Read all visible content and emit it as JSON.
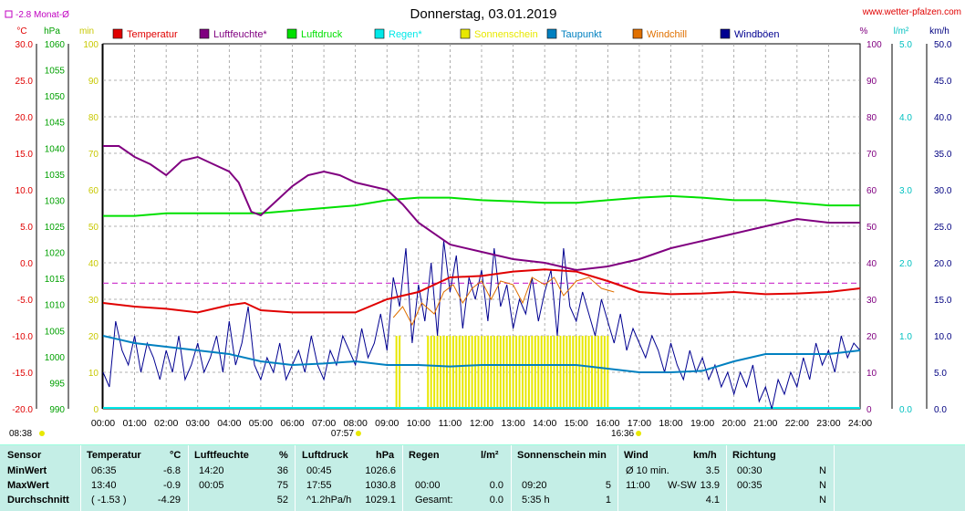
{
  "title": "Donnerstag, 03.01.2019",
  "site": "www.wetter-pfalzen.com",
  "monthly_avg": "-2.8 Monat-Ø",
  "left_units": [
    "°C",
    "hPa",
    "min"
  ],
  "right_units": [
    "%",
    "l/m²",
    "km/h"
  ],
  "legend": [
    {
      "label": "Temperatur",
      "color": "#e00000"
    },
    {
      "label": "Luftfeuchte*",
      "color": "#800080"
    },
    {
      "label": "Luftdruck",
      "color": "#00e000"
    },
    {
      "label": "Regen*",
      "color": "#00e8e8"
    },
    {
      "label": "Sonnenschein",
      "color": "#e8e800"
    },
    {
      "label": "Taupunkt",
      "color": "#0080c0"
    },
    {
      "label": "Windchill",
      "color": "#e07000"
    },
    {
      "label": "Windböen",
      "color": "#000090"
    }
  ],
  "axes": {
    "temp_ticks": [
      "30.0",
      "25.0",
      "20.0",
      "15.0",
      "10.0",
      "5.0",
      "0.0",
      "-5.0",
      "-10.0",
      "-15.0",
      "-20.0"
    ],
    "press_ticks": [
      "1060",
      "1055",
      "1050",
      "1045",
      "1040",
      "1035",
      "1030",
      "1025",
      "1020",
      "1015",
      "1010",
      "1005",
      "1000",
      "995",
      "990"
    ],
    "min_ticks": [
      "100",
      "90",
      "80",
      "70",
      "60",
      "50",
      "40",
      "30",
      "20",
      "10",
      "0"
    ],
    "hum_ticks": [
      "100",
      "90",
      "80",
      "70",
      "60",
      "50",
      "40",
      "30",
      "20",
      "10",
      "0"
    ],
    "rain_ticks": [
      "5.0",
      "4.0",
      "3.0",
      "2.0",
      "1.0",
      "0.0"
    ],
    "wind_ticks": [
      "50.0",
      "45.0",
      "40.0",
      "35.0",
      "30.0",
      "25.0",
      "20.0",
      "15.0",
      "10.0",
      "5.0",
      "0.0"
    ],
    "x_ticks": [
      "00:00",
      "01:00",
      "02:00",
      "03:00",
      "04:00",
      "05:00",
      "06:00",
      "07:00",
      "08:00",
      "09:00",
      "10:00",
      "11:00",
      "12:00",
      "13:00",
      "14:00",
      "15:00",
      "16:00",
      "17:00",
      "18:00",
      "19:00",
      "20:00",
      "21:00",
      "22:00",
      "23:00",
      "24:00"
    ],
    "sunrise": "07:57",
    "sunset": "16:36",
    "moon": "08:38"
  },
  "chart_data": {
    "type": "line",
    "x_unit": "hours",
    "temp_range": [
      -20,
      30
    ],
    "pressure_range": [
      990,
      1060
    ],
    "humidity_range": [
      0,
      100
    ],
    "wind_range": [
      0,
      50
    ],
    "sun_range": [
      0,
      100
    ],
    "monthly_avg_temp": -2.8,
    "series": [
      {
        "name": "Temperatur",
        "axis": "temp",
        "points": [
          [
            0,
            -5.5
          ],
          [
            1,
            -6.0
          ],
          [
            2,
            -6.3
          ],
          [
            3,
            -6.8
          ],
          [
            4,
            -5.8
          ],
          [
            4.5,
            -5.5
          ],
          [
            5,
            -6.5
          ],
          [
            6,
            -6.8
          ],
          [
            7,
            -6.8
          ],
          [
            8,
            -6.8
          ],
          [
            9,
            -5.0
          ],
          [
            10,
            -4.0
          ],
          [
            11,
            -2.0
          ],
          [
            12,
            -1.8
          ],
          [
            13,
            -1.2
          ],
          [
            14,
            -0.9
          ],
          [
            15,
            -1.2
          ],
          [
            16,
            -2.5
          ],
          [
            17,
            -4.0
          ],
          [
            18,
            -4.3
          ],
          [
            19,
            -4.2
          ],
          [
            20,
            -4.0
          ],
          [
            21,
            -4.3
          ],
          [
            22,
            -4.2
          ],
          [
            23,
            -4.0
          ],
          [
            24,
            -3.5
          ]
        ]
      },
      {
        "name": "Taupunkt",
        "axis": "temp",
        "points": [
          [
            0,
            -10.0
          ],
          [
            1,
            -11.0
          ],
          [
            2,
            -11.5
          ],
          [
            3,
            -12.0
          ],
          [
            4,
            -12.5
          ],
          [
            5,
            -13.5
          ],
          [
            6,
            -14.0
          ],
          [
            7,
            -13.8
          ],
          [
            8,
            -13.5
          ],
          [
            9,
            -14.0
          ],
          [
            10,
            -14.0
          ],
          [
            11,
            -14.2
          ],
          [
            12,
            -14.0
          ],
          [
            13,
            -14.0
          ],
          [
            14,
            -14.0
          ],
          [
            15,
            -14.0
          ],
          [
            16,
            -14.5
          ],
          [
            17,
            -15.0
          ],
          [
            18,
            -15.0
          ],
          [
            19,
            -14.8
          ],
          [
            20,
            -13.5
          ],
          [
            21,
            -12.5
          ],
          [
            22,
            -12.5
          ],
          [
            23,
            -12.5
          ],
          [
            24,
            -12.0
          ]
        ]
      },
      {
        "name": "Luftfeuchte*",
        "axis": "humidity",
        "points": [
          [
            0,
            72
          ],
          [
            0.5,
            72
          ],
          [
            1,
            69
          ],
          [
            1.5,
            67
          ],
          [
            2,
            64
          ],
          [
            2.5,
            68
          ],
          [
            3,
            69
          ],
          [
            3.5,
            67
          ],
          [
            4,
            65
          ],
          [
            4.3,
            62
          ],
          [
            4.7,
            54
          ],
          [
            5,
            53
          ],
          [
            5.5,
            57
          ],
          [
            6,
            61
          ],
          [
            6.5,
            64
          ],
          [
            7,
            65
          ],
          [
            7.5,
            64
          ],
          [
            8,
            62
          ],
          [
            9,
            60
          ],
          [
            9.5,
            56
          ],
          [
            10,
            51
          ],
          [
            11,
            45
          ],
          [
            12,
            43
          ],
          [
            13,
            41
          ],
          [
            14,
            40
          ],
          [
            15,
            38
          ],
          [
            16,
            39
          ],
          [
            17,
            41
          ],
          [
            18,
            44
          ],
          [
            19,
            46
          ],
          [
            20,
            48
          ],
          [
            21,
            50
          ],
          [
            22,
            52
          ],
          [
            23,
            51
          ],
          [
            24,
            51
          ]
        ]
      },
      {
        "name": "Luftdruck",
        "axis": "pressure",
        "points": [
          [
            0,
            1027.0
          ],
          [
            1,
            1027.0
          ],
          [
            2,
            1027.5
          ],
          [
            3,
            1027.5
          ],
          [
            4,
            1027.5
          ],
          [
            5,
            1027.5
          ],
          [
            6,
            1028.0
          ],
          [
            7,
            1028.5
          ],
          [
            8,
            1029.0
          ],
          [
            9,
            1030.0
          ],
          [
            10,
            1030.5
          ],
          [
            11,
            1030.5
          ],
          [
            12,
            1030.0
          ],
          [
            13,
            1029.8
          ],
          [
            14,
            1029.5
          ],
          [
            15,
            1029.5
          ],
          [
            16,
            1030.0
          ],
          [
            17,
            1030.5
          ],
          [
            18,
            1030.8
          ],
          [
            19,
            1030.5
          ],
          [
            20,
            1030.0
          ],
          [
            21,
            1030.0
          ],
          [
            22,
            1029.5
          ],
          [
            23,
            1029.0
          ],
          [
            24,
            1029.0
          ]
        ]
      },
      {
        "name": "Windchill",
        "axis": "temp",
        "points": [
          [
            9.2,
            -7.5
          ],
          [
            9.5,
            -6.0
          ],
          [
            9.8,
            -8.5
          ],
          [
            10.1,
            -5.5
          ],
          [
            10.5,
            -7.0
          ],
          [
            10.8,
            -4.0
          ],
          [
            11.1,
            -3.0
          ],
          [
            11.4,
            -5.5
          ],
          [
            11.7,
            -3.5
          ],
          [
            12.0,
            -2.5
          ],
          [
            12.3,
            -5.0
          ],
          [
            12.6,
            -2.5
          ],
          [
            13.0,
            -3.0
          ],
          [
            13.3,
            -5.5
          ],
          [
            13.6,
            -2.0
          ],
          [
            14.0,
            -3.0
          ],
          [
            14.3,
            -2.0
          ],
          [
            14.6,
            -4.5
          ],
          [
            15.0,
            -2.5
          ],
          [
            15.4,
            -2.0
          ],
          [
            15.8,
            -3.5
          ],
          [
            16.2,
            -4.0
          ]
        ]
      },
      {
        "name": "Windböen",
        "axis": "wind",
        "points": [
          [
            0,
            5
          ],
          [
            0.2,
            3
          ],
          [
            0.4,
            12
          ],
          [
            0.6,
            8
          ],
          [
            0.8,
            6
          ],
          [
            1.0,
            10
          ],
          [
            1.2,
            5
          ],
          [
            1.4,
            9
          ],
          [
            1.6,
            7
          ],
          [
            1.8,
            4
          ],
          [
            2.0,
            8
          ],
          [
            2.2,
            5
          ],
          [
            2.4,
            10
          ],
          [
            2.6,
            4
          ],
          [
            2.8,
            6
          ],
          [
            3.0,
            9
          ],
          [
            3.2,
            5
          ],
          [
            3.4,
            7
          ],
          [
            3.6,
            10
          ],
          [
            3.8,
            5
          ],
          [
            4.0,
            12
          ],
          [
            4.2,
            6
          ],
          [
            4.4,
            9
          ],
          [
            4.6,
            14
          ],
          [
            4.8,
            6
          ],
          [
            5.0,
            4
          ],
          [
            5.2,
            7
          ],
          [
            5.4,
            5
          ],
          [
            5.6,
            9
          ],
          [
            5.8,
            4
          ],
          [
            6.0,
            6
          ],
          [
            6.2,
            8
          ],
          [
            6.4,
            5
          ],
          [
            6.6,
            10
          ],
          [
            6.8,
            6
          ],
          [
            7.0,
            4
          ],
          [
            7.2,
            8
          ],
          [
            7.4,
            6
          ],
          [
            7.6,
            10
          ],
          [
            7.8,
            8
          ],
          [
            8.0,
            6
          ],
          [
            8.2,
            11
          ],
          [
            8.4,
            7
          ],
          [
            8.6,
            9
          ],
          [
            8.8,
            13
          ],
          [
            9.0,
            8
          ],
          [
            9.2,
            18
          ],
          [
            9.4,
            14
          ],
          [
            9.6,
            22
          ],
          [
            9.8,
            9
          ],
          [
            10.0,
            17
          ],
          [
            10.2,
            12
          ],
          [
            10.4,
            20
          ],
          [
            10.6,
            10
          ],
          [
            10.8,
            23
          ],
          [
            11.0,
            16
          ],
          [
            11.2,
            21
          ],
          [
            11.4,
            11
          ],
          [
            11.6,
            18
          ],
          [
            11.8,
            15
          ],
          [
            12.0,
            19
          ],
          [
            12.2,
            12
          ],
          [
            12.4,
            22
          ],
          [
            12.6,
            14
          ],
          [
            12.8,
            17
          ],
          [
            13.0,
            11
          ],
          [
            13.2,
            15
          ],
          [
            13.4,
            13
          ],
          [
            13.6,
            18
          ],
          [
            13.8,
            12
          ],
          [
            14.0,
            16
          ],
          [
            14.2,
            19
          ],
          [
            14.4,
            10
          ],
          [
            14.6,
            22
          ],
          [
            14.8,
            14
          ],
          [
            15.0,
            12
          ],
          [
            15.2,
            16
          ],
          [
            15.4,
            13
          ],
          [
            15.6,
            10
          ],
          [
            15.8,
            15
          ],
          [
            16.0,
            12
          ],
          [
            16.2,
            9
          ],
          [
            16.4,
            13
          ],
          [
            16.6,
            8
          ],
          [
            16.8,
            11
          ],
          [
            17.0,
            9
          ],
          [
            17.2,
            7
          ],
          [
            17.4,
            10
          ],
          [
            17.6,
            8
          ],
          [
            17.8,
            5
          ],
          [
            18.0,
            9
          ],
          [
            18.2,
            6
          ],
          [
            18.4,
            4
          ],
          [
            18.6,
            8
          ],
          [
            18.8,
            5
          ],
          [
            19.0,
            7
          ],
          [
            19.2,
            4
          ],
          [
            19.4,
            6
          ],
          [
            19.6,
            3
          ],
          [
            19.8,
            5
          ],
          [
            20.0,
            2
          ],
          [
            20.2,
            5
          ],
          [
            20.4,
            3
          ],
          [
            20.6,
            6
          ],
          [
            20.8,
            1
          ],
          [
            21.0,
            3
          ],
          [
            21.2,
            0
          ],
          [
            21.4,
            4
          ],
          [
            21.6,
            2
          ],
          [
            21.8,
            5
          ],
          [
            22.0,
            3
          ],
          [
            22.2,
            7
          ],
          [
            22.4,
            4
          ],
          [
            22.6,
            9
          ],
          [
            22.8,
            6
          ],
          [
            23.0,
            8
          ],
          [
            23.2,
            5
          ],
          [
            23.4,
            10
          ],
          [
            23.6,
            7
          ],
          [
            23.8,
            9
          ],
          [
            24.0,
            8
          ]
        ]
      }
    ],
    "sunshine_minutes": {
      "start": 9.3,
      "end": 16.0,
      "gap": [
        9.4,
        10.2
      ],
      "value": 5
    }
  },
  "stats": {
    "headers": {
      "sensor": "Sensor",
      "temp": "Temperatur",
      "temp_u": "°C",
      "hum": "Luftfeuchte",
      "hum_u": "%",
      "press": "Luftdruck",
      "press_u": "hPa",
      "rain": "Regen",
      "rain_u": "l/m²",
      "sun": "Sonnenschein min",
      "wind": "Wind",
      "wind_u": "km/h",
      "dir": "Richtung"
    },
    "rows": [
      {
        "label": "MinWert",
        "t_time": "06:35",
        "t_val": "-6.8",
        "h_time": "14:20",
        "h_val": "36",
        "p_time": "00:45",
        "p_val": "1026.6",
        "r_time": "",
        "r_val": "",
        "s_time": "",
        "s_val": "",
        "w_label": "Ø 10 min.",
        "w_dir": "",
        "w_val": "3.5",
        "d_time": "00:30",
        "d_val": "N"
      },
      {
        "label": "MaxWert",
        "t_time": "13:40",
        "t_val": "-0.9",
        "h_time": "00:05",
        "h_val": "75",
        "p_time": "17:55",
        "p_val": "1030.8",
        "r_time": "00:00",
        "r_val": "0.0",
        "s_time": "09:20",
        "s_val": "5",
        "w_label": "11:00",
        "w_dir": "W-SW",
        "w_val": "13.9",
        "d_time": "00:35",
        "d_val": "N"
      },
      {
        "label": "Durchschnitt",
        "t_time": "( -1.53 )",
        "t_val": "-4.29",
        "h_time": "",
        "h_val": "52",
        "p_time": "^1.2hPa/h",
        "p_val": "1029.1",
        "r_time": "Gesamt:",
        "r_val": "0.0",
        "s_time": "5:35 h",
        "s_val": "1",
        "w_label": "",
        "w_dir": "",
        "w_val": "4.1",
        "d_time": "",
        "d_val": "N"
      }
    ]
  }
}
